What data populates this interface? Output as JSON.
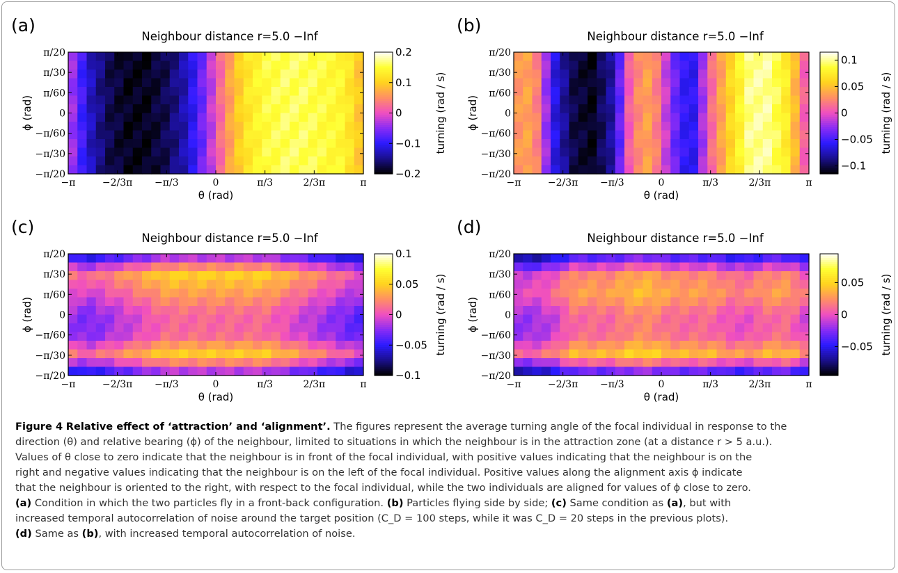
{
  "figure_label": "Figure 4",
  "figure_title": "Relative effect of ‘attraction’ and ‘alignment’.",
  "colorbar_label": "turning (rad / s)",
  "axis_labels": {
    "x": "θ (rad)",
    "y": "ϕ (rad)"
  },
  "x_ticks": [
    "−π",
    "−2/3π",
    "−π/3",
    "0",
    "π/3",
    "2/3π",
    "π"
  ],
  "y_ticks": [
    "π/20",
    "π/30",
    "π/60",
    "0",
    "−π/60",
    "−π/30",
    "−π/20"
  ],
  "colors": {
    "cmap": [
      "#000000",
      "#1a0f8c",
      "#2c1bff",
      "#8a2cf5",
      "#f04fc0",
      "#ff8f64",
      "#ffd21f",
      "#ffff33",
      "#ffffff"
    ]
  },
  "chart_data": [
    {
      "type": "heatmap",
      "panel": "(a)",
      "title": "Neighbour distance r=5.0 −Inf",
      "xlabel": "θ (rad)",
      "ylabel": "ϕ (rad)",
      "xlim": [
        -3.1416,
        3.1416
      ],
      "ylim": [
        -0.157,
        0.157
      ],
      "colorbar": {
        "label": "turning (rad / s)",
        "ticks": [
          "0.2",
          "0.1",
          "0",
          "−0.1",
          "−0.2"
        ],
        "range": [
          -0.2,
          0.2
        ]
      },
      "theta_profile": [
        -0.02,
        -0.12,
        -0.17,
        -0.19,
        -0.19,
        -0.17,
        -0.13,
        -0.05,
        0.05,
        0.12,
        0.15,
        0.16,
        0.16,
        0.15,
        0.14,
        0.08
      ],
      "phi_modulation": [
        0,
        0,
        0,
        0,
        0,
        0,
        0
      ]
    },
    {
      "type": "heatmap",
      "panel": "(b)",
      "title": "Neighbour distance r=5.0 −Inf",
      "xlabel": "θ (rad)",
      "ylabel": "ϕ (rad)",
      "xlim": [
        -3.1416,
        3.1416
      ],
      "ylim": [
        -0.157,
        0.157
      ],
      "colorbar": {
        "label": "turning (rad / s)",
        "ticks": [
          "0.1",
          "0.05",
          "0",
          "−0.05",
          "−0.1"
        ],
        "range": [
          -0.115,
          0.115
        ]
      },
      "theta_profile": [
        0.03,
        0.04,
        -0.06,
        -0.1,
        -0.11,
        -0.08,
        0.02,
        0.04,
        -0.03,
        -0.07,
        0.01,
        0.06,
        0.1,
        0.1,
        0.07,
        -0.01
      ],
      "phi_modulation": [
        0,
        0,
        0,
        0,
        0,
        0,
        0
      ]
    },
    {
      "type": "heatmap",
      "panel": "(c)",
      "title": "Neighbour distance r=5.0 −Inf",
      "xlabel": "θ (rad)",
      "ylabel": "ϕ (rad)",
      "xlim": [
        -3.1416,
        3.1416
      ],
      "ylim": [
        -0.157,
        0.157
      ],
      "colorbar": {
        "label": "turning (rad / s)",
        "ticks": [
          "0.1",
          "0.05",
          "0",
          "−0.05",
          "−0.1"
        ],
        "range": [
          -0.1,
          0.1
        ]
      },
      "theta_profile": [
        0.0,
        -0.01,
        0.0,
        0.01,
        0.02,
        0.03,
        0.03,
        0.03,
        0.03,
        0.03,
        0.03,
        0.02,
        0.01,
        0.0,
        -0.01,
        -0.02
      ],
      "phi_modulation": [
        -0.06,
        0.02,
        0.0,
        -0.02,
        -0.02,
        0.02,
        -0.06
      ]
    },
    {
      "type": "heatmap",
      "panel": "(d)",
      "title": "Neighbour distance r=5.0 −Inf",
      "xlabel": "θ (rad)",
      "ylabel": "ϕ (rad)",
      "xlim": [
        -3.1416,
        3.1416
      ],
      "ylim": [
        -0.157,
        0.157
      ],
      "colorbar": {
        "label": "turning (rad / s)",
        "ticks": [
          "0.05",
          "0",
          "−0.05"
        ],
        "range": [
          -0.095,
          0.095
        ]
      },
      "theta_profile": [
        -0.01,
        -0.01,
        0.0,
        0.02,
        0.02,
        0.02,
        0.03,
        0.03,
        0.02,
        0.02,
        0.02,
        0.01,
        0.01,
        0.02,
        0.02,
        0.0
      ],
      "phi_modulation": [
        -0.07,
        0.0,
        0.01,
        -0.01,
        -0.01,
        0.02,
        -0.07
      ]
    }
  ],
  "caption": {
    "lines": [
      "The figures represent the average turning angle of the focal individual in response to the",
      "direction (θ) and relative bearing (ϕ) of the neighbour, limited to situations in which the neighbour is in the attraction zone (at a distance r > 5 a.u.).",
      "Values of θ close to zero indicate that the neighbour is in front of the focal individual, with positive values indicating that the neighbour is on the",
      "right and negative values indicating that the neighbour is on the left of the focal individual. Positive values along the alignment axis ϕ indicate",
      "that the neighbour is oriented to the right, with respect to the focal individual, while the two individuals are aligned for values of ϕ close to zero."
    ],
    "a_label": "(a)",
    "a_text": "Condition in which the two particles fly in a front-back configuration.",
    "b_label": "(b)",
    "b_text": "Particles flying side by side;",
    "c_label": "(c)",
    "c_text_1": "Same condition as",
    "c_ref": "(a)",
    "c_text_2": ", but with",
    "c_line2": "increased temporal autocorrelation of noise around the target position (C_D = 100 steps, while it was C_D = 20 steps in the previous plots).",
    "d_label": "(d)",
    "d_text_1": "Same as",
    "d_ref": "(b)",
    "d_text_2": ", with increased temporal autocorrelation of noise."
  }
}
